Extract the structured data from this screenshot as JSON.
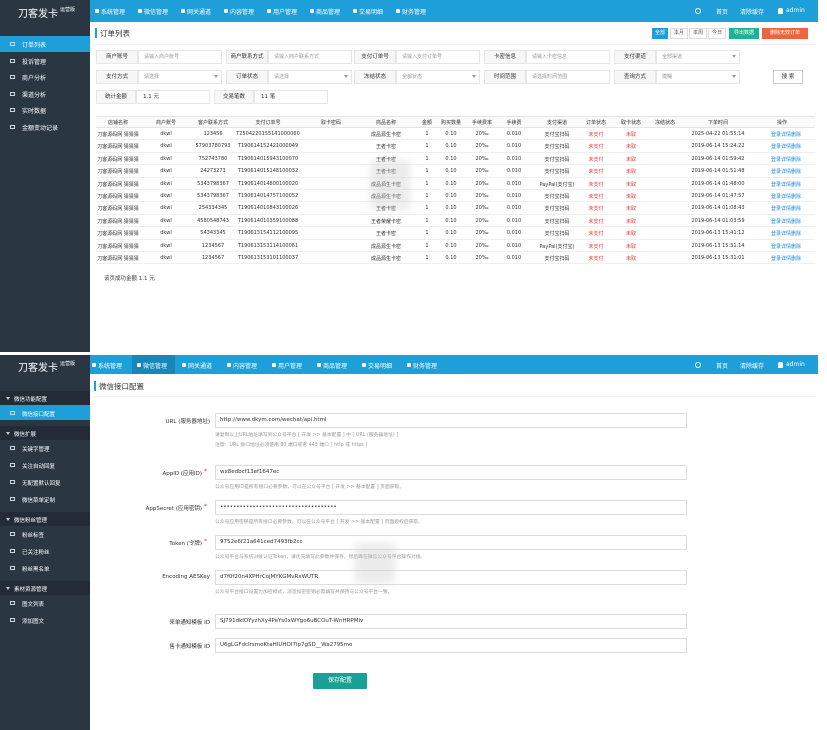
{
  "order_page": {
    "logo": {
      "title": "刀客发卡",
      "badge": "运营版"
    },
    "nav": [
      "系统管理",
      "微信管理",
      "网关通道",
      "内容管理",
      "用户管理",
      "商品管理",
      "交易明细",
      "财务管理"
    ],
    "nav_right": [
      "首页",
      "清除缓存",
      "admin"
    ],
    "sidebar": [
      "订单列表",
      "投诉管理",
      "商户分析",
      "渠道分析",
      "实时数据",
      "金额变动记录"
    ],
    "title": "订单列表",
    "buttons": [
      "全部",
      "本月",
      "本周",
      "今日",
      "导出数据",
      "删除无效订单"
    ],
    "filters": [
      [
        [
          "商户账号",
          "请输入商户账号"
        ],
        [
          "商户联系方式",
          "请输入商户联系方式"
        ],
        [
          "支付订单号",
          "请输入支付订单号"
        ],
        [
          "卡密信息",
          "请输入卡密信息"
        ],
        [
          "支付渠道",
          "全部渠道"
        ]
      ],
      [
        [
          "支付方式",
          "请选择"
        ],
        [
          "订单状态",
          "请选择"
        ],
        [
          "冻结状态",
          "全部状态"
        ],
        [
          "时间范围",
          "请选择时间范围"
        ],
        [
          "查询方式",
          "模糊"
        ]
      ]
    ],
    "search_button": "搜 索",
    "stats": [
      [
        "统计金额",
        "1.1 元"
      ],
      [
        "交易笔数",
        "11 笔"
      ]
    ],
    "table": {
      "headers": [
        "店铺名称",
        "商户账号",
        "客户联系方式",
        "支付订单号",
        "取卡密码",
        "商品名称",
        "金额",
        "购买数量",
        "手续费率",
        "手续费",
        "支付渠道",
        "订单状态",
        "取卡状态",
        "冻结状态",
        "下单时间",
        "操作"
      ],
      "rows": [
        [
          "刀客源码网 猜猜猜",
          "dkwl",
          "123456",
          "T2504220155141000060",
          "",
          "成品源生卡密",
          "1",
          "0.10",
          "20‰",
          "0.010",
          "支付宝扫码",
          "未支付",
          "未取",
          "",
          "2025-04-22 01:55:14"
        ],
        [
          "刀客源码网 猜猜猜",
          "dkwl",
          "57903780793",
          "T190614152421000049",
          "",
          "王者卡密",
          "1",
          "0.10",
          "20‰",
          "0.010",
          "支付宝扫码",
          "未支付",
          "未取",
          "",
          "2019-06-14 15:24:22"
        ],
        [
          "刀客源码网 猜猜猜",
          "dkwl",
          "752743780",
          "T190614015943100070",
          "",
          "王者卡密",
          "1",
          "0.10",
          "20‰",
          "0.010",
          "支付宝扫码",
          "未支付",
          "未取",
          "",
          "2019-06-14 01:59:42"
        ],
        [
          "刀客源码网 猜猜猜",
          "dkwl",
          "24273273",
          "T190614015148100032",
          "",
          "王者卡密",
          "1",
          "0.10",
          "20‰",
          "0.010",
          "支付宝扫码",
          "未支付",
          "未取",
          "",
          "2019-06-14 01:51:48"
        ],
        [
          "刀客源码网 猜猜猜",
          "dkwl",
          "5343798367",
          "T190614014800100020",
          "",
          "成品源生卡密",
          "1",
          "0.10",
          "20‰",
          "0.010",
          "PayPal(支付宝)",
          "未支付",
          "未取",
          "",
          "2019-06-14 01:48:00"
        ],
        [
          "刀客源码网 猜猜猜",
          "dkwl",
          "5343798367",
          "T190614014757100052",
          "",
          "成品源生卡密",
          "1",
          "0.10",
          "20‰",
          "0.010",
          "支付宝扫码",
          "未支付",
          "未取",
          "",
          "2019-06-14 01:47:57"
        ],
        [
          "刀客源码网 猜猜猜",
          "dkwl",
          "254334345",
          "T190614010843100026",
          "",
          "王者卡密",
          "1",
          "0.10",
          "20‰",
          "0.010",
          "支付宝扫码",
          "未支付",
          "未取",
          "",
          "2019-06-14 01:08:43"
        ],
        [
          "刀客源码网 猜猜猜",
          "dkwl",
          "4580548743",
          "T190614010359100088",
          "",
          "王者荣耀卡密",
          "1",
          "0.10",
          "20‰",
          "0.010",
          "支付宝扫码",
          "未支付",
          "未取",
          "",
          "2019-06-14 01:03:59"
        ],
        [
          "刀客源码网 猜猜猜",
          "dkwl",
          "54343345",
          "T190613154112100095",
          "",
          "王者卡密",
          "1",
          "0.10",
          "20‰",
          "0.010",
          "支付宝扫码",
          "未支付",
          "未取",
          "",
          "2019-06-13 15:41:12"
        ],
        [
          "刀客源码网 猜猜猜",
          "dkwl",
          "1234567",
          "T190613153114100061",
          "",
          "成品源生卡密",
          "1",
          "0.10",
          "20‰",
          "0.010",
          "PayPal(支付宝)",
          "未支付",
          "未取",
          "",
          "2019-06-13 15:31:14"
        ],
        [
          "刀客源码网 猜猜猜",
          "dkwl",
          "1234567",
          "T190613153101100037",
          "",
          "成品源生卡密",
          "1",
          "0.10",
          "20‰",
          "0.010",
          "支付宝扫码",
          "未支付",
          "未取",
          "",
          "2019-06-13 15:31:01"
        ]
      ],
      "row_actions": [
        "登录",
        "详情",
        "删除"
      ]
    },
    "footer": "该页成功金额 1.1 元"
  },
  "wechat_page": {
    "logo": {
      "title": "刀客发卡",
      "badge": "运营版"
    },
    "nav": [
      "系统管理",
      "微信管理",
      "网关通道",
      "内容管理",
      "用户管理",
      "商品管理",
      "交易明细",
      "财务管理"
    ],
    "nav_right": [
      "首页",
      "清除缓存",
      "admin"
    ],
    "sidebar": [
      {
        "group": "微信功能配置",
        "items": [
          "微信接口配置"
        ]
      },
      {
        "group": "微信扩展",
        "items": [
          "关键字管理",
          "关注自动回复",
          "无配置默认回复",
          "微信菜单定制"
        ]
      },
      {
        "group": "微信粉丝管理",
        "items": [
          "粉丝标签",
          "已关注粉丝",
          "粉丝黑名单"
        ]
      },
      {
        "group": "素材资源管理",
        "items": [
          "图文列表",
          "添加图文"
        ]
      }
    ],
    "title": "微信接口配置",
    "fields": [
      {
        "label": "URL (服务器地址)",
        "value": "http://www.dkym.com/wechat/api.html",
        "help": [
          "请复制以上URL地址填写到公众号平台 [ 开发 >> 基本配置 ] 中 [ URL (服务器地址) ]",
          "注意：URL 接口地址必须使用 80 端口或者 443 端口 [ http 或 https ]"
        ]
      },
      {
        "label": "AppID (应用ID)",
        "mark": "*",
        "value": "wx8edbcf13ef1647ec",
        "help": [
          "公众号应用ID是所有接口必要参数，可以在公众号平台 [ 开发 >> 基本配置 ] 页面获取。"
        ]
      },
      {
        "label": "AppSecret (应用密钥)",
        "mark": "*",
        "value": "••••••••••••••••••••••••••••••••••••",
        "help": [
          "公众号应用密钥是所有接口必要参数，可以在公众号平台 [ 开发 >> 基本配置 ] 页面授权后获取。"
        ]
      },
      {
        "label": "Token (令牌)",
        "mark": "*",
        "value": "9752e6f21a641ced7493fb2cc",
        "help": [
          "公众号平台与系统对接认证Token，请优先填写此参数并保存，然后再在微信公众号平台操作对接。"
        ]
      },
      {
        "label": "Encoding AESKey",
        "value": "d7f0f20n4XPHrCojMYKGMvRxWUTR",
        "help": [
          "公众号平台接口设置为加密模式，消息加密密钥必需填写并保持与公众号平台一致。"
        ]
      },
      {
        "label": "来单通知模板 ID",
        "value": "SJ791dkIOYyzhXy4PeYs0xWYgo6uBCOuT-WnHRPMlv",
        "help": []
      },
      {
        "label": "售卡通知模板 ID",
        "value": "U6gLGFdcIrsmoKtaHIUHOI7lp7gSD__Wa2795mo",
        "help": []
      }
    ],
    "save_button": "保存配置"
  }
}
